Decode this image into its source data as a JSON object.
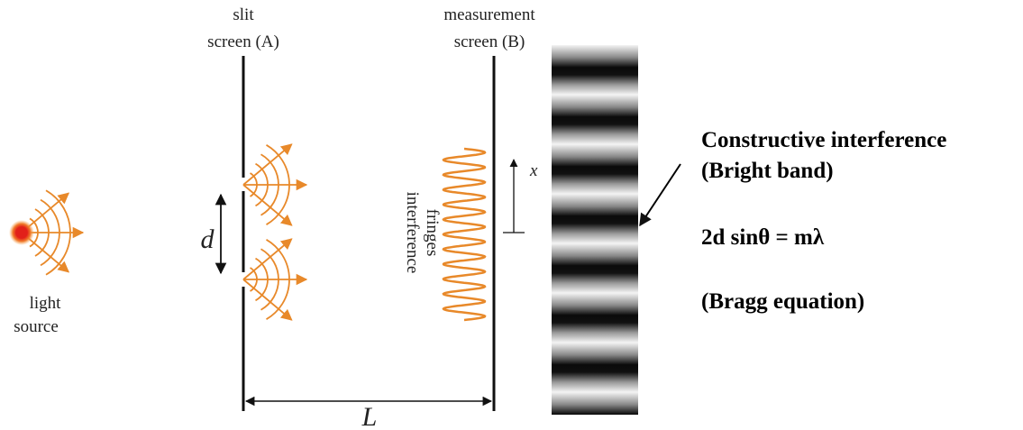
{
  "slit_screen": {
    "line1": "slit",
    "line2": "screen (A)"
  },
  "measurement_screen": {
    "line1": "measurement",
    "line2": "screen (B)"
  },
  "source": {
    "line1": "light",
    "line2": "source"
  },
  "fringes": {
    "line1": "interference",
    "line2": "fringes"
  },
  "symbols": {
    "slit_spacing": "d",
    "distance": "L",
    "position": "x"
  },
  "annotation": {
    "title": "Constructive interference",
    "subtitle": "(Bright band)",
    "equation": "2d sinθ = mλ",
    "equation_name": "(Bragg equation)"
  }
}
